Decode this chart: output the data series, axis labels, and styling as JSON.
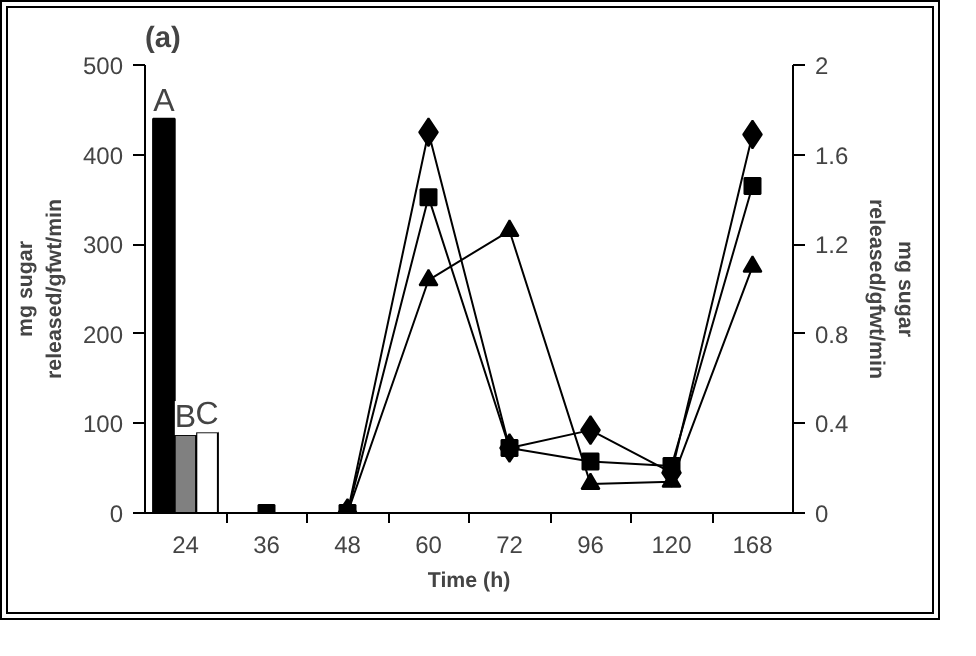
{
  "chart_data": {
    "type": "bar",
    "title": "(a)",
    "xlabel": "Time (h)",
    "ylabel": "mg sugar\nreleased/gfwt/min",
    "y2label": "mg sugar\nreleased/gfwt/min",
    "categories": [
      "24",
      "36",
      "48",
      "60",
      "72",
      "96",
      "120",
      "168"
    ],
    "ylim": [
      0,
      500
    ],
    "yticks": [
      0,
      100,
      200,
      300,
      400,
      500
    ],
    "y2lim": [
      0,
      2
    ],
    "y2ticks": [
      0,
      0.4,
      0.8,
      1.2,
      1.6,
      2
    ],
    "grid": false,
    "series": [
      {
        "color": "#000000",
        "values": [
          440,
          null,
          null,
          null,
          null,
          null,
          null,
          null
        ],
        "value_labels": [
          "A",
          null,
          null,
          null,
          null,
          null,
          null,
          null
        ]
      },
      {
        "color": "#808080",
        "values": [
          87,
          null,
          null,
          null,
          null,
          null,
          null,
          null
        ],
        "value_labels": [
          "B",
          null,
          null,
          null,
          null,
          null,
          null,
          null
        ]
      },
      {
        "color": "#ffffff",
        "values": [
          90,
          null,
          null,
          null,
          null,
          null,
          null,
          null
        ],
        "value_labels": [
          "C",
          null,
          null,
          null,
          null,
          null,
          null,
          null
        ]
      },
      {
        "type": "line",
        "axis": "y2",
        "marker": "diamond",
        "color": "#000000",
        "values": [
          null,
          null,
          0,
          1.7,
          0.29,
          0.37,
          0.18,
          1.69
        ]
      },
      {
        "type": "line",
        "axis": "y2",
        "marker": "square",
        "color": "#000000",
        "values": [
          null,
          0,
          0,
          1.41,
          0.29,
          0.23,
          0.21,
          1.46
        ]
      },
      {
        "type": "line",
        "axis": "y2",
        "marker": "triangle",
        "color": "#000000",
        "values": [
          null,
          null,
          0,
          1.04,
          1.26,
          0.13,
          0.14,
          1.1
        ]
      }
    ]
  }
}
